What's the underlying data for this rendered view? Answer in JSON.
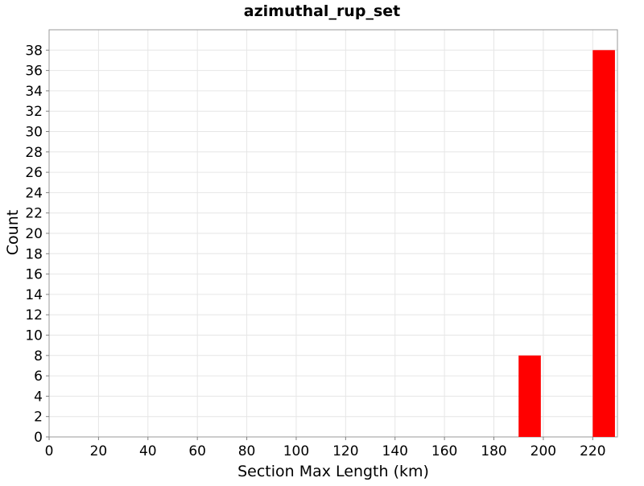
{
  "chart_data": {
    "type": "bar",
    "title": "azimuthal_rup_set",
    "xlabel": "Section Max Length (km)",
    "ylabel": "Count",
    "xlim": [
      0,
      230
    ],
    "ylim": [
      0,
      40
    ],
    "x_ticks": [
      0,
      20,
      40,
      60,
      80,
      100,
      120,
      140,
      160,
      180,
      200,
      220
    ],
    "y_ticks": [
      0,
      2,
      4,
      6,
      8,
      10,
      12,
      14,
      16,
      18,
      20,
      22,
      24,
      26,
      28,
      30,
      32,
      34,
      36,
      38
    ],
    "grid": true,
    "bar_color": "#ff0000",
    "bins": [
      {
        "x_start": 190,
        "x_end": 199,
        "value": 8
      },
      {
        "x_start": 220,
        "x_end": 229,
        "value": 38
      }
    ]
  }
}
